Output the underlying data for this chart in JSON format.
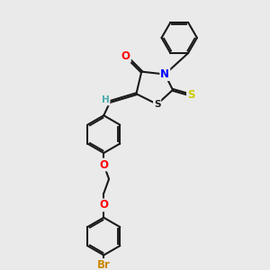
{
  "background_color": "#eaeaea",
  "bond_color": "#1a1a1a",
  "atom_colors": {
    "O": "#ff0000",
    "N": "#0000ff",
    "S_thione": "#cccc00",
    "S_ring": "#1a1a1a",
    "Br": "#cc8800",
    "H": "#4aacac",
    "C": "#1a1a1a"
  },
  "bond_width": 1.5,
  "font_size_atom": 8.5,
  "fig_width": 3.0,
  "fig_height": 3.0,
  "dpi": 100
}
